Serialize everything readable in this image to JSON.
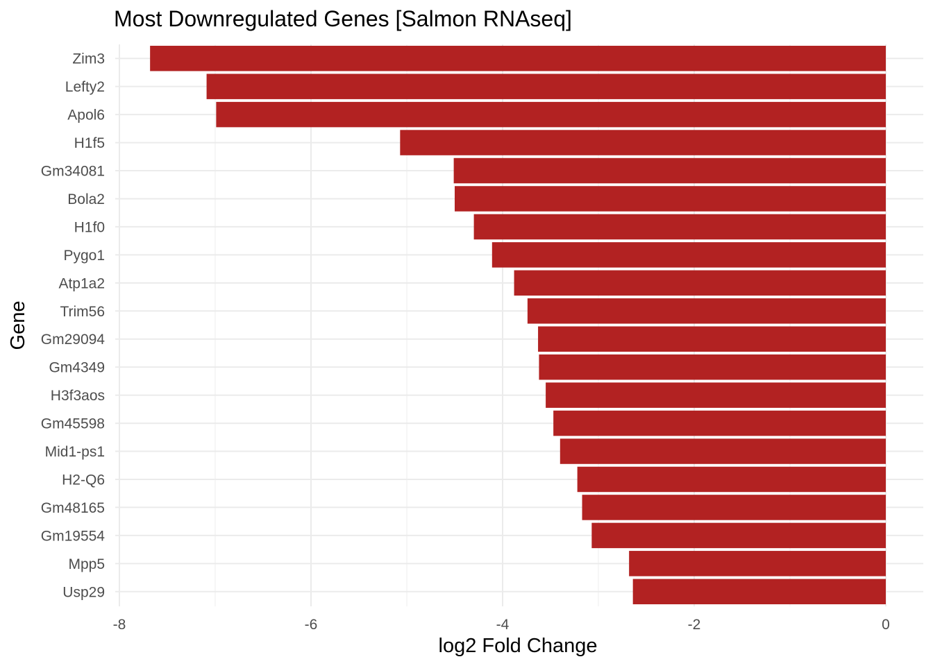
{
  "chart_data": {
    "type": "bar",
    "orientation": "horizontal",
    "title": "Most Downregulated Genes [Salmon RNAseq]",
    "xlabel": "log2 Fold Change",
    "ylabel": "Gene",
    "xlim": [
      -8,
      0
    ],
    "xticks": [
      -8,
      -6,
      -4,
      -2,
      0
    ],
    "xtick_labels": [
      "-8",
      "-6",
      "-4",
      "-2",
      "0"
    ],
    "grid": true,
    "bar_color": "#b22222",
    "categories": [
      "Zim3",
      "Lefty2",
      "Apol6",
      "H1f5",
      "Gm34081",
      "Bola2",
      "H1f0",
      "Pygo1",
      "Atp1a2",
      "Trim56",
      "Gm29094",
      "Gm4349",
      "H3f3aos",
      "Gm45598",
      "Mid1-ps1",
      "H2-Q6",
      "Gm48165",
      "Gm19554",
      "Mpp5",
      "Usp29"
    ],
    "values": [
      -7.68,
      -7.09,
      -6.99,
      -5.07,
      -4.51,
      -4.5,
      -4.3,
      -4.11,
      -3.88,
      -3.74,
      -3.63,
      -3.62,
      -3.55,
      -3.47,
      -3.4,
      -3.22,
      -3.17,
      -3.07,
      -2.68,
      -2.64
    ]
  }
}
